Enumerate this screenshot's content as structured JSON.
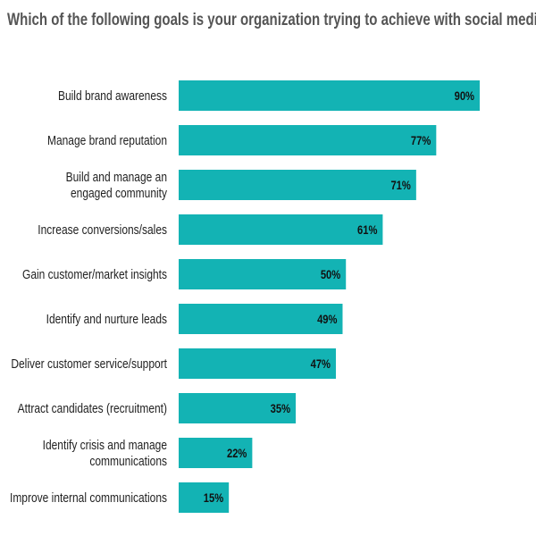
{
  "chart_data": {
    "type": "bar",
    "orientation": "horizontal",
    "title": "Which of the following goals is your organization trying to achieve with social media?",
    "categories": [
      "Build brand awareness",
      "Manage brand reputation",
      "Build and manage an engaged community",
      "Increase conversions/sales",
      "Gain customer/market insights",
      "Identify and nurture leads",
      "Deliver customer service/support",
      "Attract candidates (recruitment)",
      "Identify crisis and manage communications",
      "Improve internal communications"
    ],
    "category_lines": [
      [
        "Build brand awareness"
      ],
      [
        "Manage brand reputation"
      ],
      [
        "Build and manage an",
        "engaged community"
      ],
      [
        "Increase conversions/sales"
      ],
      [
        "Gain customer/market insights"
      ],
      [
        "Identify and nurture leads"
      ],
      [
        "Deliver customer service/support"
      ],
      [
        "Attract candidates (recruitment)"
      ],
      [
        "Identify crisis and manage",
        "communications"
      ],
      [
        "Improve internal communications"
      ]
    ],
    "values": [
      90,
      77,
      71,
      61,
      50,
      49,
      47,
      35,
      22,
      15
    ],
    "data_labels": [
      "90%",
      "77%",
      "71%",
      "61%",
      "50%",
      "49%",
      "47%",
      "35%",
      "22%",
      "15%"
    ],
    "unit": "%",
    "xlim": [
      0,
      100
    ],
    "grid": false,
    "legend": "none",
    "bar_color": "#13b3b4"
  }
}
